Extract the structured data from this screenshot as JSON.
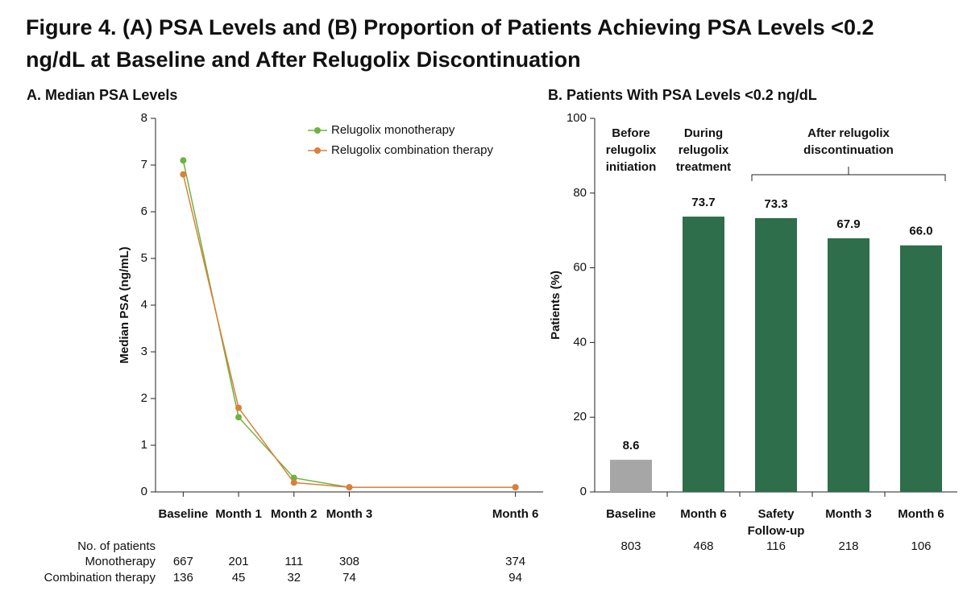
{
  "title": "Figure 4. (A) PSA Levels and (B) Proportion of Patients Achieving PSA Levels <0.2 ng/dL at Baseline and After Relugolix Discontinuation",
  "chart_data": [
    {
      "type": "line",
      "title": "A. Median PSA Levels",
      "y_label": "Median PSA (ng/mL)",
      "x": [
        0,
        1,
        2,
        3,
        6
      ],
      "xlim": [
        -0.5,
        6.5
      ],
      "xticks": [
        {
          "value": 0,
          "label": "Baseline"
        },
        {
          "value": 1,
          "label": "Month 1"
        },
        {
          "value": 2,
          "label": "Month 2"
        },
        {
          "value": 3,
          "label": "Month 3"
        },
        {
          "value": 6,
          "label": "Month 6"
        }
      ],
      "ylim": [
        0,
        8
      ],
      "yticks": [
        0,
        1,
        2,
        3,
        4,
        5,
        6,
        7,
        8
      ],
      "legend": "top-right",
      "series": [
        {
          "name": "Relugolix monotherapy",
          "color": "#6db33f",
          "values": [
            7.1,
            1.6,
            0.3,
            0.1,
            0.1
          ]
        },
        {
          "name": "Relugolix combination therapy",
          "color": "#dc7f3b",
          "values": [
            6.8,
            1.8,
            0.2,
            0.1,
            0.1
          ]
        }
      ],
      "patient_counts": {
        "label": "No. of patients",
        "rows": [
          {
            "name": "Monotherapy",
            "color": "#6db33f",
            "values": [
              667,
              201,
              111,
              308,
              374
            ]
          },
          {
            "name": "Combination therapy",
            "color": "#dc7f3b",
            "values": [
              136,
              45,
              32,
              74,
              94
            ]
          }
        ]
      }
    },
    {
      "type": "bar",
      "title": "B. Patients With PSA Levels <0.2 ng/dL",
      "y_label": "Patients (%)",
      "categories": [
        "Baseline",
        "Month 6",
        "Safety\nFollow-up",
        "Month 3",
        "Month 6"
      ],
      "values": [
        8.6,
        73.7,
        73.3,
        67.9,
        66.0
      ],
      "value_labels": [
        "8.6",
        "73.7",
        "73.3",
        "67.9",
        "66.0"
      ],
      "colors": [
        "#a6a6a6",
        "#2e6e4b",
        "#2e6e4b",
        "#2e6e4b",
        "#2e6e4b"
      ],
      "ylim": [
        0,
        100
      ],
      "yticks": [
        0,
        20,
        40,
        60,
        80,
        100
      ],
      "groups": [
        {
          "label": "Before\nrelugolix\ninitiation",
          "from": 0,
          "to": 0
        },
        {
          "label": "During\nrelugolix\ntreatment",
          "from": 1,
          "to": 1
        },
        {
          "label": "After relugolix\ndiscontinuation",
          "from": 2,
          "to": 4
        }
      ],
      "patient_counts": {
        "values": [
          803,
          468,
          116,
          218,
          106
        ],
        "colors": [
          "#6b6b6b",
          "#2e6e4b",
          "#2e6e4b",
          "#2e6e4b",
          "#2e6e4b"
        ]
      }
    }
  ]
}
